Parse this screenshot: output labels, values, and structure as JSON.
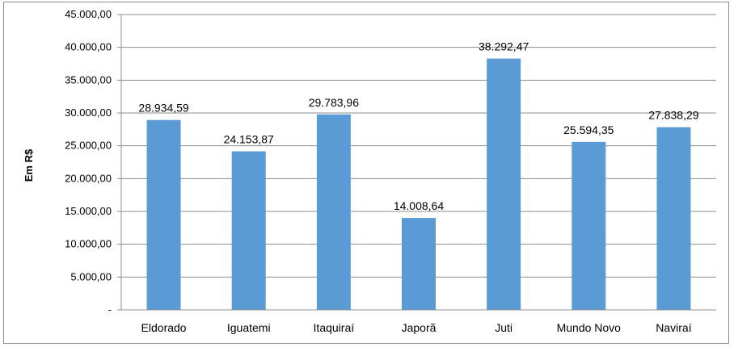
{
  "chart_data": {
    "type": "bar",
    "categories": [
      "Eldorado",
      "Iguatemi",
      "Itaquiraí",
      "Japorã",
      "Juti",
      "Mundo Novo",
      "Naviraí"
    ],
    "values": [
      28934.59,
      24153.87,
      29783.96,
      14008.64,
      38292.47,
      25594.35,
      27838.29
    ],
    "data_labels": [
      "28.934,59",
      "24.153,87",
      "29.783,96",
      "14.008,64",
      "38.292,47",
      "25.594,35",
      "27.838,29"
    ],
    "y_tick_values": [
      0,
      5000,
      10000,
      15000,
      20000,
      25000,
      30000,
      35000,
      40000,
      45000
    ],
    "y_tick_labels": [
      "-",
      "5.000,00",
      "10.000,00",
      "15.000,00",
      "20.000,00",
      "25.000,00",
      "30.000,00",
      "35.000,00",
      "40.000,00",
      "45.000,00"
    ],
    "ylim": [
      0,
      45000
    ],
    "ylabel": "Em R$",
    "xlabel": "",
    "title": "",
    "grid": true,
    "bar_color": "#5b9bd5",
    "grid_color": "#8c8c8c"
  }
}
